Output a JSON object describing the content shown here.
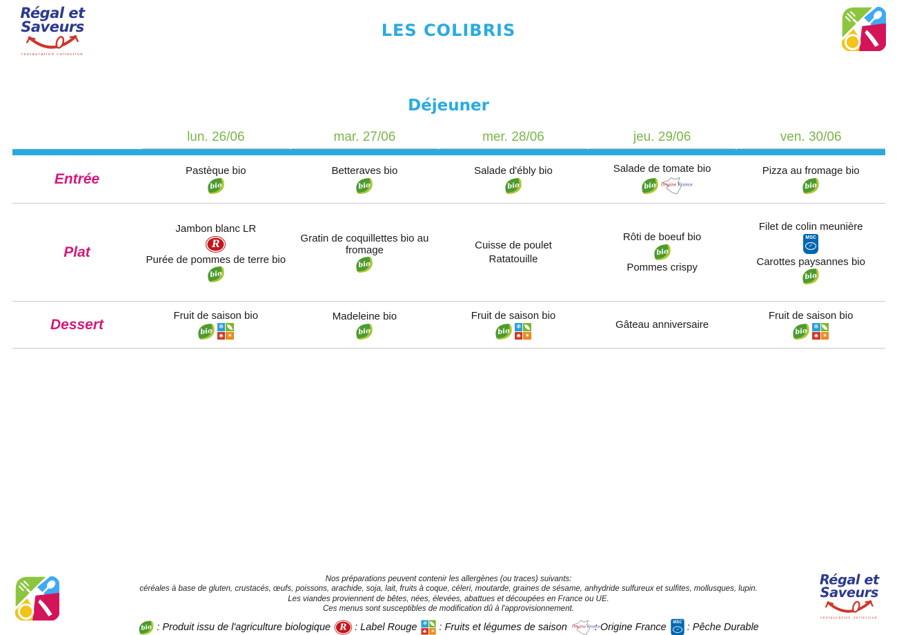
{
  "brand": {
    "name_line1": "Régal et",
    "name_line2": "Saveurs",
    "tagline": "restauration collective"
  },
  "header": {
    "title": "LES COLIBRIS",
    "meal": "Déjeuner"
  },
  "table": {
    "days": [
      "lun. 26/06",
      "mar. 27/06",
      "mer. 28/06",
      "jeu. 29/06",
      "ven. 30/06"
    ],
    "rows": [
      {
        "label": "Entrée",
        "cells": [
          {
            "items": [
              {
                "text": "Pastèque bio",
                "icons": [
                  "bio"
                ]
              }
            ]
          },
          {
            "items": [
              {
                "text": "Betteraves bio",
                "icons": [
                  "bio"
                ]
              }
            ]
          },
          {
            "items": [
              {
                "text": "Salade d'ébly bio",
                "icons": [
                  "bio"
                ]
              }
            ]
          },
          {
            "items": [
              {
                "text": "Salade de tomate bio",
                "icons": [
                  "bio",
                  "origine-france"
                ]
              }
            ]
          },
          {
            "items": [
              {
                "text": "Pizza au fromage bio",
                "icons": [
                  "bio"
                ]
              }
            ]
          }
        ]
      },
      {
        "label": "Plat",
        "cells": [
          {
            "items": [
              {
                "text": "Jambon blanc LR",
                "icons": [
                  "label-rouge"
                ]
              },
              {
                "text": "Purée de pommes de terre bio",
                "icons": [
                  "bio"
                ]
              }
            ]
          },
          {
            "items": [
              {
                "text": "Gratin de coquillettes bio au fromage",
                "icons": [
                  "bio"
                ]
              }
            ]
          },
          {
            "items": [
              {
                "text": "Cuisse de poulet",
                "icons": []
              },
              {
                "text": "Ratatouille",
                "icons": []
              }
            ]
          },
          {
            "items": [
              {
                "text": "Rôti de boeuf bio",
                "icons": [
                  "bio"
                ]
              },
              {
                "text": "Pommes crispy",
                "icons": []
              }
            ]
          },
          {
            "items": [
              {
                "text": "Filet de colin meunière",
                "icons": [
                  "msc"
                ]
              },
              {
                "text": "Carottes paysannes bio",
                "icons": [
                  "bio"
                ]
              }
            ]
          }
        ]
      },
      {
        "label": "Dessert",
        "cells": [
          {
            "items": [
              {
                "text": "Fruit de saison bio",
                "icons": [
                  "bio",
                  "saison"
                ]
              }
            ]
          },
          {
            "items": [
              {
                "text": "Madeleine bio",
                "icons": [
                  "bio"
                ]
              }
            ]
          },
          {
            "items": [
              {
                "text": "Fruit de saison bio",
                "icons": [
                  "bio",
                  "saison"
                ]
              }
            ]
          },
          {
            "items": [
              {
                "text": "Gâteau anniversaire",
                "icons": []
              }
            ]
          },
          {
            "items": [
              {
                "text": "Fruit de saison bio",
                "icons": [
                  "bio",
                  "saison"
                ]
              }
            ]
          }
        ]
      }
    ]
  },
  "footer": {
    "allergen_line1": "Nos préparations peuvent contenir les allergènes (ou traces) suivants:",
    "allergen_line2": "céréales à base de gluten, crustacés, œufs, poissons, arachide, soja, lait, fruits à coque, céleri, moutarde, graines de sésame, anhydride sulfureux et sulfites, mollusques, lupin.",
    "meat_line": "Les viandes proviennent de bêtes, nées, élevées, abattues et découpées en France ou UE.",
    "modification_line": "Ces menus sont susceptibles de modification dû à l'approvisionnement.",
    "legend": [
      {
        "icon": "bio",
        "label": ": Produit issu de l'agriculture biologique"
      },
      {
        "icon": "label-rouge",
        "label": ": Label Rouge"
      },
      {
        "icon": "saison",
        "label": ": Fruits et légumes de saison"
      },
      {
        "icon": "origine-france",
        "label": ": Origine France"
      },
      {
        "icon": "msc",
        "label": ": Pêche Durable"
      }
    ]
  },
  "icons": {
    "bio_text": "bio",
    "label_rouge_letter": "R",
    "msc_text": "MSC",
    "msc_check": "✓",
    "saison_winter": "❄",
    "saison_summer": "☀",
    "saison_autumn": "♣",
    "origine_word1": "Origine",
    "origine_word2": "France"
  },
  "colors": {
    "accent_blue": "#29abe2",
    "date_green": "#7ab648",
    "row_magenta": "#d4187a",
    "bio_green": "#4d9b2f",
    "label_rouge_red": "#c4161c",
    "msc_blue": "#0067b1"
  }
}
